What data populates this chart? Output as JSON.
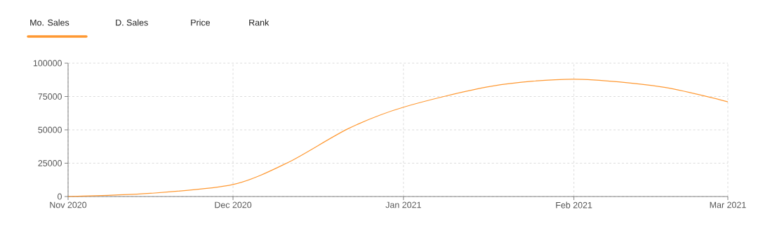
{
  "chart_data": {
    "type": "line",
    "annotations": [
      "Mo. Sales",
      "D. Sales",
      "Price",
      "Rank"
    ],
    "x": [
      "2020-11-01",
      "2020-11-16",
      "2020-12-01",
      "2020-12-11",
      "2020-12-22",
      "2021-01-01",
      "2021-01-17",
      "2021-02-01",
      "2021-02-17",
      "2021-03-01"
    ],
    "series": [
      {
        "color": "#ff9933",
        "values": [
          0,
          2400,
          9000,
          25500,
          51000,
          67000,
          82700,
          88000,
          82200,
          71000
        ]
      }
    ],
    "xlim": [
      "2020-11-01",
      "2021-03-01"
    ],
    "xticks": [
      {
        "value": "2020-11-01",
        "label": "Nov 2020"
      },
      {
        "value": "2020-12-01",
        "label": "Dec 2020"
      },
      {
        "value": "2021-01-01",
        "label": "Jan 2021"
      },
      {
        "value": "2021-02-01",
        "label": "Feb 2021"
      },
      {
        "value": "2021-03-01",
        "label": "Mar 2021"
      }
    ],
    "ylim": [
      0,
      100000
    ],
    "yticks": [
      0,
      25000,
      50000,
      75000,
      100000
    ],
    "grid": true,
    "legend": false,
    "marker": "none",
    "line_style": "solid"
  }
}
